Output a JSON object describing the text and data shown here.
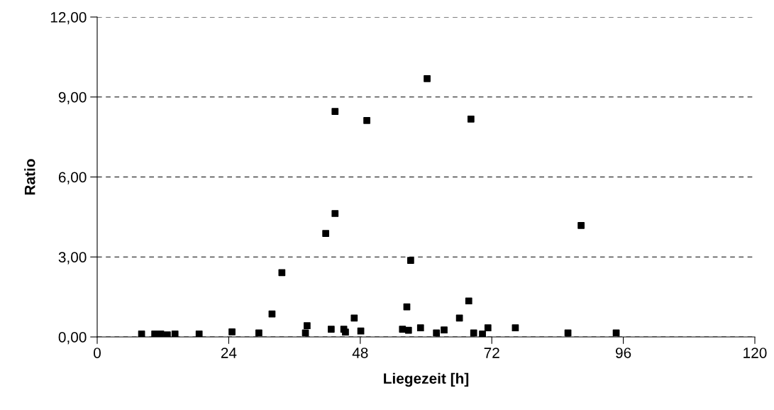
{
  "chart_data": {
    "type": "scatter",
    "xlabel": "Liegezeit [h]",
    "ylabel": "Ratio",
    "x": [
      8.1,
      10.5,
      11.6,
      12.8,
      14.2,
      18.6,
      24.6,
      29.5,
      31.9,
      33.7,
      38.0,
      38.3,
      41.7,
      42.7,
      43.4,
      43.4,
      45.0,
      45.3,
      46.9,
      48.1,
      49.2,
      55.7,
      56.5,
      56.8,
      57.2,
      59.0,
      60.2,
      61.9,
      63.3,
      66.1,
      67.8,
      68.2,
      68.7,
      70.3,
      71.3,
      76.3,
      85.9,
      88.3,
      94.7
    ],
    "series": [
      {
        "color": "#000000",
        "values": [
          0.11,
          0.11,
          0.11,
          0.08,
          0.11,
          0.11,
          0.19,
          0.15,
          0.86,
          2.41,
          0.15,
          0.42,
          3.88,
          0.29,
          8.46,
          4.63,
          0.29,
          0.18,
          0.71,
          0.22,
          8.12,
          0.29,
          1.13,
          0.25,
          2.87,
          0.34,
          9.69,
          0.15,
          0.26,
          0.71,
          1.35,
          8.17,
          0.15,
          0.11,
          0.34,
          0.34,
          0.15,
          4.18,
          0.15
        ]
      }
    ],
    "xlim": [
      0,
      120
    ],
    "xticks": [
      0,
      24,
      48,
      72,
      96,
      120
    ],
    "ylim": [
      0,
      12
    ],
    "yticks": [
      {
        "value": 0,
        "label": "0,00"
      },
      {
        "value": 3,
        "label": "3,00"
      },
      {
        "value": 6,
        "label": "6,00"
      },
      {
        "value": 9,
        "label": "9,00"
      },
      {
        "value": 12,
        "label": "12,00"
      }
    ],
    "grid": "y",
    "marker": "square",
    "legend": false
  }
}
